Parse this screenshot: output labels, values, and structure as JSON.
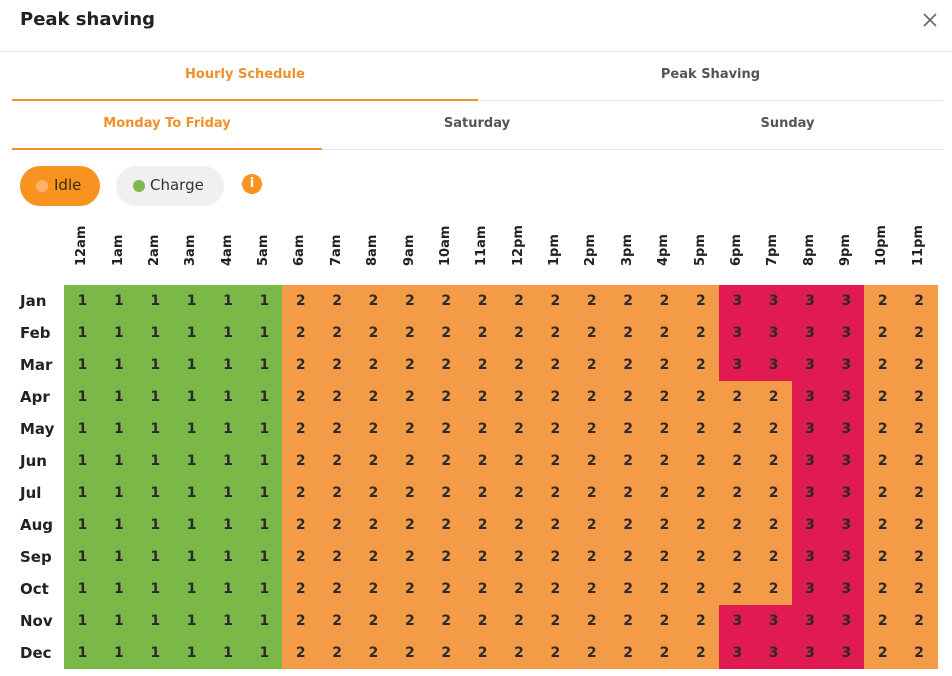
{
  "title": "Peak shaving",
  "tabs": [
    {
      "label": "Hourly Schedule",
      "active": true
    },
    {
      "label": "Peak Shaving",
      "active": false
    }
  ],
  "subtabs": [
    {
      "label": "Monday To Friday",
      "active": true
    },
    {
      "label": "Saturday",
      "active": false
    },
    {
      "label": "Sunday",
      "active": false
    }
  ],
  "modes": {
    "idle": {
      "label": "Idle",
      "selected": true
    },
    "charge": {
      "label": "Charge",
      "selected": false
    }
  },
  "info_icon": "i",
  "colors": {
    "accent": "#f0902a",
    "idle_pill": "#f7931e",
    "idle_dot": "#fbb36a",
    "charge_dot": "#7db84a",
    "tier_1": "#7ab847",
    "tier_2": "#f49b48",
    "tier_3": "#e11a52"
  },
  "hours": [
    "12am",
    "1am",
    "2am",
    "3am",
    "4am",
    "5am",
    "6am",
    "7am",
    "8am",
    "9am",
    "10am",
    "11am",
    "12pm",
    "1pm",
    "2pm",
    "3pm",
    "4pm",
    "5pm",
    "6pm",
    "7pm",
    "8pm",
    "9pm",
    "10pm",
    "11pm"
  ],
  "months": [
    "Jan",
    "Feb",
    "Mar",
    "Apr",
    "May",
    "Jun",
    "Jul",
    "Aug",
    "Sep",
    "Oct",
    "Nov",
    "Dec"
  ],
  "schedule": [
    [
      1,
      1,
      1,
      1,
      1,
      1,
      2,
      2,
      2,
      2,
      2,
      2,
      2,
      2,
      2,
      2,
      2,
      2,
      3,
      3,
      3,
      3,
      2,
      2
    ],
    [
      1,
      1,
      1,
      1,
      1,
      1,
      2,
      2,
      2,
      2,
      2,
      2,
      2,
      2,
      2,
      2,
      2,
      2,
      3,
      3,
      3,
      3,
      2,
      2
    ],
    [
      1,
      1,
      1,
      1,
      1,
      1,
      2,
      2,
      2,
      2,
      2,
      2,
      2,
      2,
      2,
      2,
      2,
      2,
      3,
      3,
      3,
      3,
      2,
      2
    ],
    [
      1,
      1,
      1,
      1,
      1,
      1,
      2,
      2,
      2,
      2,
      2,
      2,
      2,
      2,
      2,
      2,
      2,
      2,
      2,
      2,
      3,
      3,
      2,
      2
    ],
    [
      1,
      1,
      1,
      1,
      1,
      1,
      2,
      2,
      2,
      2,
      2,
      2,
      2,
      2,
      2,
      2,
      2,
      2,
      2,
      2,
      3,
      3,
      2,
      2
    ],
    [
      1,
      1,
      1,
      1,
      1,
      1,
      2,
      2,
      2,
      2,
      2,
      2,
      2,
      2,
      2,
      2,
      2,
      2,
      2,
      2,
      3,
      3,
      2,
      2
    ],
    [
      1,
      1,
      1,
      1,
      1,
      1,
      2,
      2,
      2,
      2,
      2,
      2,
      2,
      2,
      2,
      2,
      2,
      2,
      2,
      2,
      3,
      3,
      2,
      2
    ],
    [
      1,
      1,
      1,
      1,
      1,
      1,
      2,
      2,
      2,
      2,
      2,
      2,
      2,
      2,
      2,
      2,
      2,
      2,
      2,
      2,
      3,
      3,
      2,
      2
    ],
    [
      1,
      1,
      1,
      1,
      1,
      1,
      2,
      2,
      2,
      2,
      2,
      2,
      2,
      2,
      2,
      2,
      2,
      2,
      2,
      2,
      3,
      3,
      2,
      2
    ],
    [
      1,
      1,
      1,
      1,
      1,
      1,
      2,
      2,
      2,
      2,
      2,
      2,
      2,
      2,
      2,
      2,
      2,
      2,
      2,
      2,
      3,
      3,
      2,
      2
    ],
    [
      1,
      1,
      1,
      1,
      1,
      1,
      2,
      2,
      2,
      2,
      2,
      2,
      2,
      2,
      2,
      2,
      2,
      2,
      3,
      3,
      3,
      3,
      2,
      2
    ],
    [
      1,
      1,
      1,
      1,
      1,
      1,
      2,
      2,
      2,
      2,
      2,
      2,
      2,
      2,
      2,
      2,
      2,
      2,
      3,
      3,
      3,
      3,
      2,
      2
    ]
  ]
}
